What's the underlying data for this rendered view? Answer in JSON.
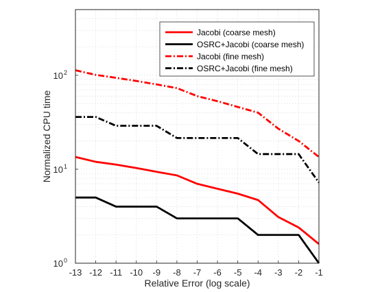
{
  "chart_data": {
    "type": "line",
    "xlabel": "Relative Error (log scale)",
    "ylabel": "Normalized CPU time",
    "x_ticks": [
      "-13",
      "-12",
      "-11",
      "-10",
      "-9",
      "-8",
      "-7",
      "-6",
      "-5",
      "-4",
      "-3",
      "-2",
      "-1"
    ],
    "y_ticks": [
      "10",
      "10",
      "10"
    ],
    "y_tick_exponents": [
      "0",
      "1",
      "2"
    ],
    "xlim": [
      -13,
      -1
    ],
    "ylim": [
      1,
      500
    ],
    "y_scale": "log",
    "grid": true,
    "legend_position": "top-right",
    "series": [
      {
        "name": "Jacobi (coarse mesh)",
        "color": "#ff0000",
        "dash": "solid",
        "x": [
          -13,
          -12,
          -11,
          -10,
          -9,
          -8,
          -7,
          -6,
          -5,
          -4,
          -3,
          -2,
          -1
        ],
        "y": [
          13.5,
          12,
          11.2,
          10.3,
          9.4,
          8.6,
          7,
          6.2,
          5.5,
          4.7,
          3.1,
          2.4,
          1.6
        ]
      },
      {
        "name": "OSRC+Jacobi (coarse mesh)",
        "color": "#000000",
        "dash": "solid",
        "x": [
          -13,
          -12,
          -11,
          -10,
          -9,
          -8,
          -7,
          -6,
          -5,
          -4,
          -3,
          -2,
          -1
        ],
        "y": [
          5,
          5,
          4,
          4,
          4,
          3,
          3,
          3,
          3,
          2,
          2,
          2,
          1
        ]
      },
      {
        "name": "Jacobi (fine mesh)",
        "color": "#ff0000",
        "dash": "dashdot",
        "x": [
          -13,
          -12,
          -11,
          -10,
          -9,
          -8,
          -7,
          -6,
          -5,
          -4,
          -3,
          -2,
          -1
        ],
        "y": [
          113,
          101,
          94,
          87,
          80,
          73,
          60,
          53,
          46,
          40,
          27,
          20,
          13.5
        ]
      },
      {
        "name": "OSRC+Jacobi (fine mesh)",
        "color": "#000000",
        "dash": "dashdot",
        "x": [
          -13,
          -12,
          -11,
          -10,
          -9,
          -8,
          -7,
          -6,
          -5,
          -4,
          -3,
          -2,
          -1
        ],
        "y": [
          36,
          36,
          29,
          29,
          29,
          21.5,
          21.5,
          21.5,
          21.5,
          14.5,
          14.5,
          14.5,
          7.2
        ]
      }
    ]
  }
}
